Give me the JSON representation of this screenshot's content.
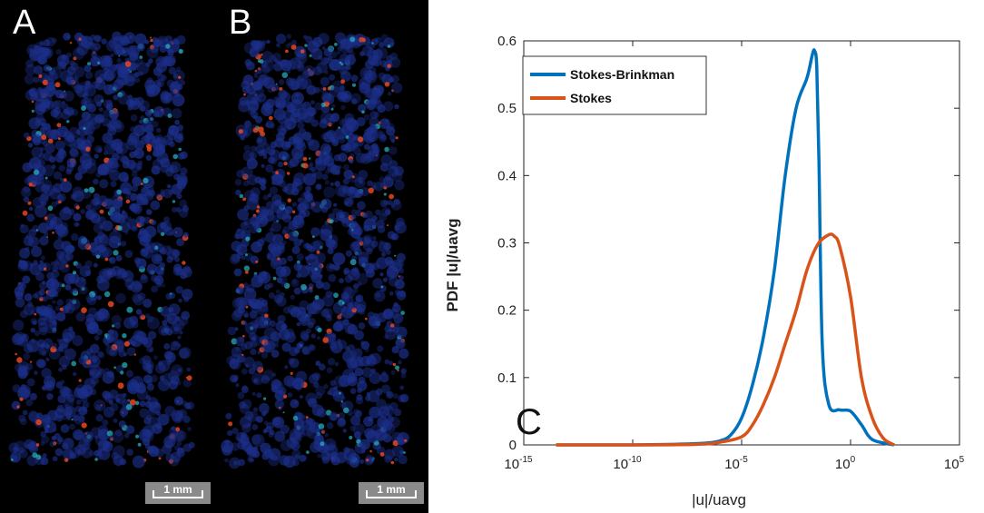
{
  "panels": {
    "a": {
      "letter": "A",
      "scale_label": "1 mm"
    },
    "b": {
      "letter": "B",
      "scale_label": "1 mm"
    }
  },
  "colors": {
    "stokes_brinkman": "#0072BD",
    "stokes": "#D95319",
    "image_background": "#000000",
    "flow_low": "#1c2f8a",
    "flow_mid": "#2ab5c4",
    "flow_high": "#e8461e"
  },
  "chart_data": {
    "type": "line",
    "annotation": "C",
    "xlabel": "|u|/uavg",
    "ylabel": "PDF |u|/uavg",
    "x_scale": "log",
    "xlim": [
      1e-15,
      100000
    ],
    "ylim": [
      0,
      0.6
    ],
    "x_ticks": [
      {
        "value": 1e-15,
        "base": "10",
        "exp": "-15"
      },
      {
        "value": 1e-10,
        "base": "10",
        "exp": "-10"
      },
      {
        "value": 1e-05,
        "base": "10",
        "exp": "-5"
      },
      {
        "value": 1,
        "base": "10",
        "exp": "0"
      },
      {
        "value": 100000,
        "base": "10",
        "exp": "5"
      }
    ],
    "y_ticks": [
      "0",
      "0.1",
      "0.2",
      "0.3",
      "0.4",
      "0.5",
      "0.6"
    ],
    "legend_position": "top-left",
    "grid": false,
    "series": [
      {
        "name": "Stokes-Brinkman",
        "color_key": "stokes_brinkman",
        "x": [
          3e-14,
          1e-10,
          1e-07,
          1e-06,
          3.2e-06,
          1e-05,
          3.2e-05,
          0.0001,
          0.00032,
          0.001,
          0.00316,
          0.01,
          0.0178,
          0.0224,
          0.0282,
          0.0355,
          0.05,
          0.1,
          0.316,
          1,
          3.16,
          10,
          100
        ],
        "y": [
          0,
          0,
          0.002,
          0.006,
          0.015,
          0.04,
          0.09,
          0.16,
          0.26,
          0.4,
          0.5,
          0.545,
          0.58,
          0.585,
          0.56,
          0.42,
          0.15,
          0.06,
          0.052,
          0.05,
          0.03,
          0.008,
          0
        ]
      },
      {
        "name": "Stokes",
        "color_key": "stokes",
        "x": [
          3e-14,
          1e-10,
          1e-07,
          1e-06,
          1e-05,
          3.2e-05,
          0.0001,
          0.00032,
          0.001,
          0.00316,
          0.01,
          0.0316,
          0.1,
          0.178,
          0.316,
          1,
          3.16,
          10,
          31.6,
          100
        ],
        "y": [
          0,
          0,
          0.001,
          0.004,
          0.012,
          0.03,
          0.06,
          0.1,
          0.15,
          0.2,
          0.26,
          0.298,
          0.312,
          0.31,
          0.295,
          0.22,
          0.1,
          0.04,
          0.01,
          0
        ]
      }
    ]
  }
}
